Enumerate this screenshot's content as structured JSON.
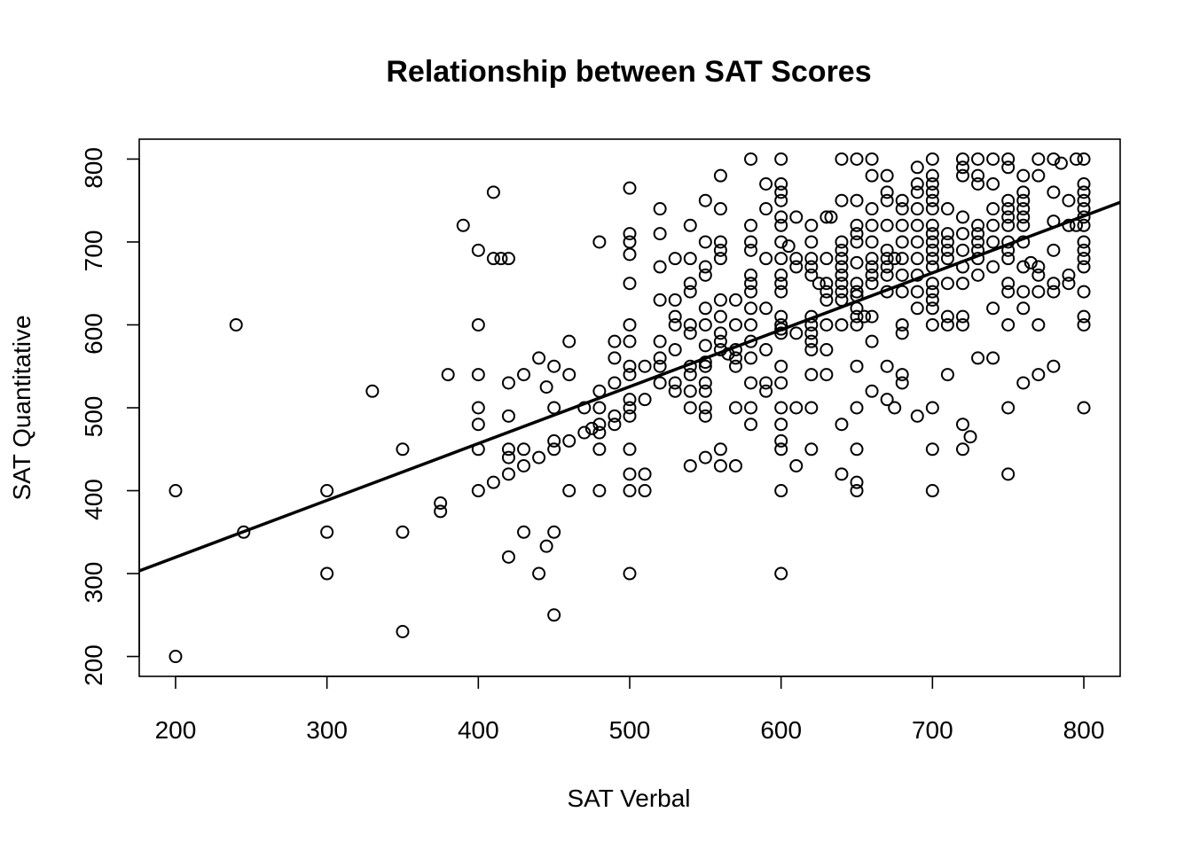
{
  "chart_data": {
    "type": "scatter",
    "title": "Relationship between SAT Scores",
    "xlabel": "SAT Verbal",
    "ylabel": "SAT Quantitative",
    "xlim": [
      176,
      824
    ],
    "ylim": [
      176,
      824
    ],
    "xticks": [
      200,
      300,
      400,
      500,
      600,
      700,
      800
    ],
    "yticks": [
      200,
      300,
      400,
      500,
      600,
      700,
      800
    ],
    "xtick_labels": [
      "200",
      "300",
      "400",
      "500",
      "600",
      "700",
      "800"
    ],
    "ytick_labels": [
      "200",
      "300",
      "400",
      "500",
      "600",
      "700",
      "800"
    ],
    "grid": false,
    "legend": "none",
    "regression_line": {
      "intercept": 182.5,
      "slope": 0.686
    },
    "points": [
      [
        200,
        400
      ],
      [
        200,
        200
      ],
      [
        240,
        600
      ],
      [
        245,
        350
      ],
      [
        300,
        400
      ],
      [
        300,
        350
      ],
      [
        300,
        300
      ],
      [
        330,
        520
      ],
      [
        350,
        450
      ],
      [
        350,
        350
      ],
      [
        350,
        230
      ],
      [
        375,
        385
      ],
      [
        375,
        375
      ],
      [
        380,
        540
      ],
      [
        390,
        720
      ],
      [
        400,
        690
      ],
      [
        400,
        600
      ],
      [
        400,
        540
      ],
      [
        400,
        500
      ],
      [
        400,
        480
      ],
      [
        400,
        450
      ],
      [
        400,
        400
      ],
      [
        410,
        760
      ],
      [
        410,
        680
      ],
      [
        410,
        410
      ],
      [
        415,
        680
      ],
      [
        420,
        680
      ],
      [
        420,
        530
      ],
      [
        420,
        490
      ],
      [
        420,
        450
      ],
      [
        420,
        440
      ],
      [
        420,
        420
      ],
      [
        420,
        320
      ],
      [
        430,
        540
      ],
      [
        430,
        450
      ],
      [
        430,
        430
      ],
      [
        430,
        350
      ],
      [
        440,
        560
      ],
      [
        440,
        440
      ],
      [
        440,
        300
      ],
      [
        445,
        525
      ],
      [
        445,
        333
      ],
      [
        450,
        550
      ],
      [
        450,
        500
      ],
      [
        450,
        460
      ],
      [
        450,
        450
      ],
      [
        450,
        350
      ],
      [
        450,
        250
      ],
      [
        460,
        580
      ],
      [
        460,
        540
      ],
      [
        460,
        460
      ],
      [
        460,
        400
      ],
      [
        470,
        500
      ],
      [
        470,
        470
      ],
      [
        475,
        475
      ],
      [
        480,
        700
      ],
      [
        480,
        520
      ],
      [
        480,
        500
      ],
      [
        480,
        480
      ],
      [
        480,
        470
      ],
      [
        480,
        450
      ],
      [
        480,
        400
      ],
      [
        490,
        580
      ],
      [
        490,
        560
      ],
      [
        490,
        530
      ],
      [
        490,
        490
      ],
      [
        490,
        480
      ],
      [
        500,
        765
      ],
      [
        500,
        710
      ],
      [
        500,
        700
      ],
      [
        500,
        685
      ],
      [
        500,
        650
      ],
      [
        500,
        600
      ],
      [
        500,
        580
      ],
      [
        500,
        550
      ],
      [
        500,
        540
      ],
      [
        500,
        510
      ],
      [
        500,
        500
      ],
      [
        500,
        490
      ],
      [
        500,
        450
      ],
      [
        500,
        420
      ],
      [
        500,
        400
      ],
      [
        500,
        300
      ],
      [
        510,
        550
      ],
      [
        510,
        510
      ],
      [
        510,
        420
      ],
      [
        510,
        400
      ],
      [
        520,
        740
      ],
      [
        520,
        710
      ],
      [
        520,
        670
      ],
      [
        520,
        630
      ],
      [
        520,
        580
      ],
      [
        520,
        560
      ],
      [
        520,
        550
      ],
      [
        520,
        530
      ],
      [
        530,
        680
      ],
      [
        530,
        630
      ],
      [
        530,
        610
      ],
      [
        530,
        600
      ],
      [
        530,
        570
      ],
      [
        530,
        530
      ],
      [
        530,
        520
      ],
      [
        540,
        720
      ],
      [
        540,
        680
      ],
      [
        540,
        650
      ],
      [
        540,
        640
      ],
      [
        540,
        600
      ],
      [
        540,
        590
      ],
      [
        540,
        550
      ],
      [
        540,
        540
      ],
      [
        540,
        520
      ],
      [
        540,
        500
      ],
      [
        540,
        430
      ],
      [
        550,
        750
      ],
      [
        550,
        700
      ],
      [
        550,
        670
      ],
      [
        550,
        660
      ],
      [
        550,
        620
      ],
      [
        550,
        600
      ],
      [
        550,
        575
      ],
      [
        550,
        555
      ],
      [
        550,
        550
      ],
      [
        550,
        530
      ],
      [
        550,
        520
      ],
      [
        550,
        500
      ],
      [
        550,
        490
      ],
      [
        550,
        440
      ],
      [
        560,
        780
      ],
      [
        560,
        740
      ],
      [
        560,
        700
      ],
      [
        560,
        690
      ],
      [
        560,
        680
      ],
      [
        560,
        630
      ],
      [
        560,
        610
      ],
      [
        560,
        590
      ],
      [
        560,
        580
      ],
      [
        560,
        570
      ],
      [
        560,
        450
      ],
      [
        560,
        430
      ],
      [
        565,
        565
      ],
      [
        570,
        630
      ],
      [
        570,
        600
      ],
      [
        570,
        570
      ],
      [
        570,
        560
      ],
      [
        570,
        550
      ],
      [
        570,
        500
      ],
      [
        570,
        430
      ],
      [
        580,
        800
      ],
      [
        580,
        720
      ],
      [
        580,
        700
      ],
      [
        580,
        690
      ],
      [
        580,
        660
      ],
      [
        580,
        650
      ],
      [
        580,
        640
      ],
      [
        580,
        620
      ],
      [
        580,
        600
      ],
      [
        580,
        580
      ],
      [
        580,
        560
      ],
      [
        580,
        530
      ],
      [
        580,
        500
      ],
      [
        580,
        480
      ],
      [
        590,
        770
      ],
      [
        590,
        740
      ],
      [
        590,
        680
      ],
      [
        590,
        620
      ],
      [
        590,
        570
      ],
      [
        590,
        530
      ],
      [
        590,
        520
      ],
      [
        600,
        800
      ],
      [
        600,
        770
      ],
      [
        600,
        760
      ],
      [
        600,
        750
      ],
      [
        600,
        730
      ],
      [
        600,
        720
      ],
      [
        600,
        700
      ],
      [
        600,
        680
      ],
      [
        600,
        660
      ],
      [
        600,
        650
      ],
      [
        600,
        640
      ],
      [
        600,
        610
      ],
      [
        600,
        600
      ],
      [
        600,
        595
      ],
      [
        600,
        590
      ],
      [
        600,
        550
      ],
      [
        600,
        530
      ],
      [
        600,
        500
      ],
      [
        600,
        480
      ],
      [
        600,
        460
      ],
      [
        600,
        450
      ],
      [
        600,
        400
      ],
      [
        600,
        300
      ],
      [
        605,
        695
      ],
      [
        610,
        730
      ],
      [
        610,
        680
      ],
      [
        610,
        670
      ],
      [
        610,
        590
      ],
      [
        610,
        500
      ],
      [
        610,
        430
      ],
      [
        620,
        720
      ],
      [
        620,
        700
      ],
      [
        620,
        680
      ],
      [
        620,
        670
      ],
      [
        620,
        660
      ],
      [
        620,
        610
      ],
      [
        620,
        600
      ],
      [
        620,
        590
      ],
      [
        620,
        580
      ],
      [
        620,
        570
      ],
      [
        620,
        540
      ],
      [
        620,
        500
      ],
      [
        620,
        450
      ],
      [
        625,
        650
      ],
      [
        630,
        730
      ],
      [
        630,
        680
      ],
      [
        630,
        650
      ],
      [
        630,
        640
      ],
      [
        630,
        630
      ],
      [
        630,
        600
      ],
      [
        630,
        570
      ],
      [
        630,
        540
      ],
      [
        633,
        730
      ],
      [
        640,
        800
      ],
      [
        640,
        750
      ],
      [
        640,
        700
      ],
      [
        640,
        690
      ],
      [
        640,
        680
      ],
      [
        640,
        670
      ],
      [
        640,
        660
      ],
      [
        640,
        650
      ],
      [
        640,
        640
      ],
      [
        640,
        630
      ],
      [
        640,
        600
      ],
      [
        640,
        480
      ],
      [
        640,
        420
      ],
      [
        650,
        800
      ],
      [
        650,
        750
      ],
      [
        650,
        720
      ],
      [
        650,
        710
      ],
      [
        650,
        700
      ],
      [
        650,
        675
      ],
      [
        650,
        650
      ],
      [
        650,
        640
      ],
      [
        650,
        635
      ],
      [
        650,
        620
      ],
      [
        650,
        610
      ],
      [
        650,
        600
      ],
      [
        650,
        550
      ],
      [
        650,
        500
      ],
      [
        650,
        450
      ],
      [
        650,
        410
      ],
      [
        650,
        400
      ],
      [
        655,
        610
      ],
      [
        660,
        800
      ],
      [
        660,
        780
      ],
      [
        660,
        740
      ],
      [
        660,
        720
      ],
      [
        660,
        700
      ],
      [
        660,
        680
      ],
      [
        660,
        670
      ],
      [
        660,
        660
      ],
      [
        660,
        650
      ],
      [
        660,
        610
      ],
      [
        660,
        580
      ],
      [
        660,
        520
      ],
      [
        670,
        780
      ],
      [
        670,
        760
      ],
      [
        670,
        750
      ],
      [
        670,
        720
      ],
      [
        670,
        690
      ],
      [
        670,
        680
      ],
      [
        670,
        670
      ],
      [
        670,
        660
      ],
      [
        670,
        640
      ],
      [
        670,
        550
      ],
      [
        670,
        510
      ],
      [
        675,
        500
      ],
      [
        675,
        680
      ],
      [
        680,
        750
      ],
      [
        680,
        740
      ],
      [
        680,
        720
      ],
      [
        680,
        700
      ],
      [
        680,
        680
      ],
      [
        680,
        660
      ],
      [
        680,
        640
      ],
      [
        680,
        600
      ],
      [
        680,
        590
      ],
      [
        680,
        540
      ],
      [
        680,
        530
      ],
      [
        690,
        790
      ],
      [
        690,
        770
      ],
      [
        690,
        760
      ],
      [
        690,
        740
      ],
      [
        690,
        720
      ],
      [
        690,
        700
      ],
      [
        690,
        680
      ],
      [
        690,
        660
      ],
      [
        690,
        640
      ],
      [
        690,
        620
      ],
      [
        690,
        490
      ],
      [
        700,
        800
      ],
      [
        700,
        780
      ],
      [
        700,
        770
      ],
      [
        700,
        760
      ],
      [
        700,
        750
      ],
      [
        700,
        740
      ],
      [
        700,
        720
      ],
      [
        700,
        710
      ],
      [
        700,
        700
      ],
      [
        700,
        690
      ],
      [
        700,
        680
      ],
      [
        700,
        670
      ],
      [
        700,
        650
      ],
      [
        700,
        640
      ],
      [
        700,
        630
      ],
      [
        700,
        620
      ],
      [
        700,
        600
      ],
      [
        700,
        500
      ],
      [
        700,
        450
      ],
      [
        700,
        400
      ],
      [
        710,
        740
      ],
      [
        710,
        710
      ],
      [
        710,
        700
      ],
      [
        710,
        690
      ],
      [
        710,
        680
      ],
      [
        710,
        650
      ],
      [
        710,
        610
      ],
      [
        710,
        600
      ],
      [
        710,
        540
      ],
      [
        720,
        800
      ],
      [
        720,
        790
      ],
      [
        720,
        780
      ],
      [
        720,
        730
      ],
      [
        720,
        710
      ],
      [
        720,
        690
      ],
      [
        720,
        670
      ],
      [
        720,
        650
      ],
      [
        720,
        610
      ],
      [
        720,
        600
      ],
      [
        720,
        480
      ],
      [
        720,
        450
      ],
      [
        725,
        465
      ],
      [
        730,
        800
      ],
      [
        730,
        780
      ],
      [
        730,
        770
      ],
      [
        730,
        720
      ],
      [
        730,
        710
      ],
      [
        730,
        700
      ],
      [
        730,
        690
      ],
      [
        730,
        680
      ],
      [
        730,
        660
      ],
      [
        730,
        560
      ],
      [
        740,
        800
      ],
      [
        740,
        770
      ],
      [
        740,
        740
      ],
      [
        740,
        720
      ],
      [
        740,
        700
      ],
      [
        740,
        670
      ],
      [
        740,
        620
      ],
      [
        740,
        560
      ],
      [
        750,
        800
      ],
      [
        750,
        790
      ],
      [
        750,
        750
      ],
      [
        750,
        740
      ],
      [
        750,
        730
      ],
      [
        750,
        720
      ],
      [
        750,
        700
      ],
      [
        750,
        690
      ],
      [
        750,
        680
      ],
      [
        750,
        650
      ],
      [
        750,
        640
      ],
      [
        750,
        600
      ],
      [
        750,
        500
      ],
      [
        750,
        420
      ],
      [
        760,
        780
      ],
      [
        760,
        760
      ],
      [
        760,
        750
      ],
      [
        760,
        740
      ],
      [
        760,
        730
      ],
      [
        760,
        720
      ],
      [
        760,
        700
      ],
      [
        760,
        670
      ],
      [
        760,
        640
      ],
      [
        760,
        620
      ],
      [
        760,
        530
      ],
      [
        765,
        675
      ],
      [
        770,
        800
      ],
      [
        770,
        780
      ],
      [
        770,
        670
      ],
      [
        770,
        660
      ],
      [
        770,
        640
      ],
      [
        770,
        600
      ],
      [
        770,
        540
      ],
      [
        780,
        800
      ],
      [
        780,
        760
      ],
      [
        780,
        725
      ],
      [
        780,
        690
      ],
      [
        780,
        650
      ],
      [
        780,
        640
      ],
      [
        780,
        550
      ],
      [
        785,
        795
      ],
      [
        790,
        750
      ],
      [
        790,
        720
      ],
      [
        790,
        660
      ],
      [
        790,
        650
      ],
      [
        795,
        720
      ],
      [
        795,
        800
      ],
      [
        800,
        800
      ],
      [
        800,
        770
      ],
      [
        800,
        760
      ],
      [
        800,
        750
      ],
      [
        800,
        740
      ],
      [
        800,
        730
      ],
      [
        800,
        720
      ],
      [
        800,
        700
      ],
      [
        800,
        690
      ],
      [
        800,
        680
      ],
      [
        800,
        670
      ],
      [
        800,
        640
      ],
      [
        800,
        610
      ],
      [
        800,
        600
      ],
      [
        800,
        500
      ]
    ]
  }
}
